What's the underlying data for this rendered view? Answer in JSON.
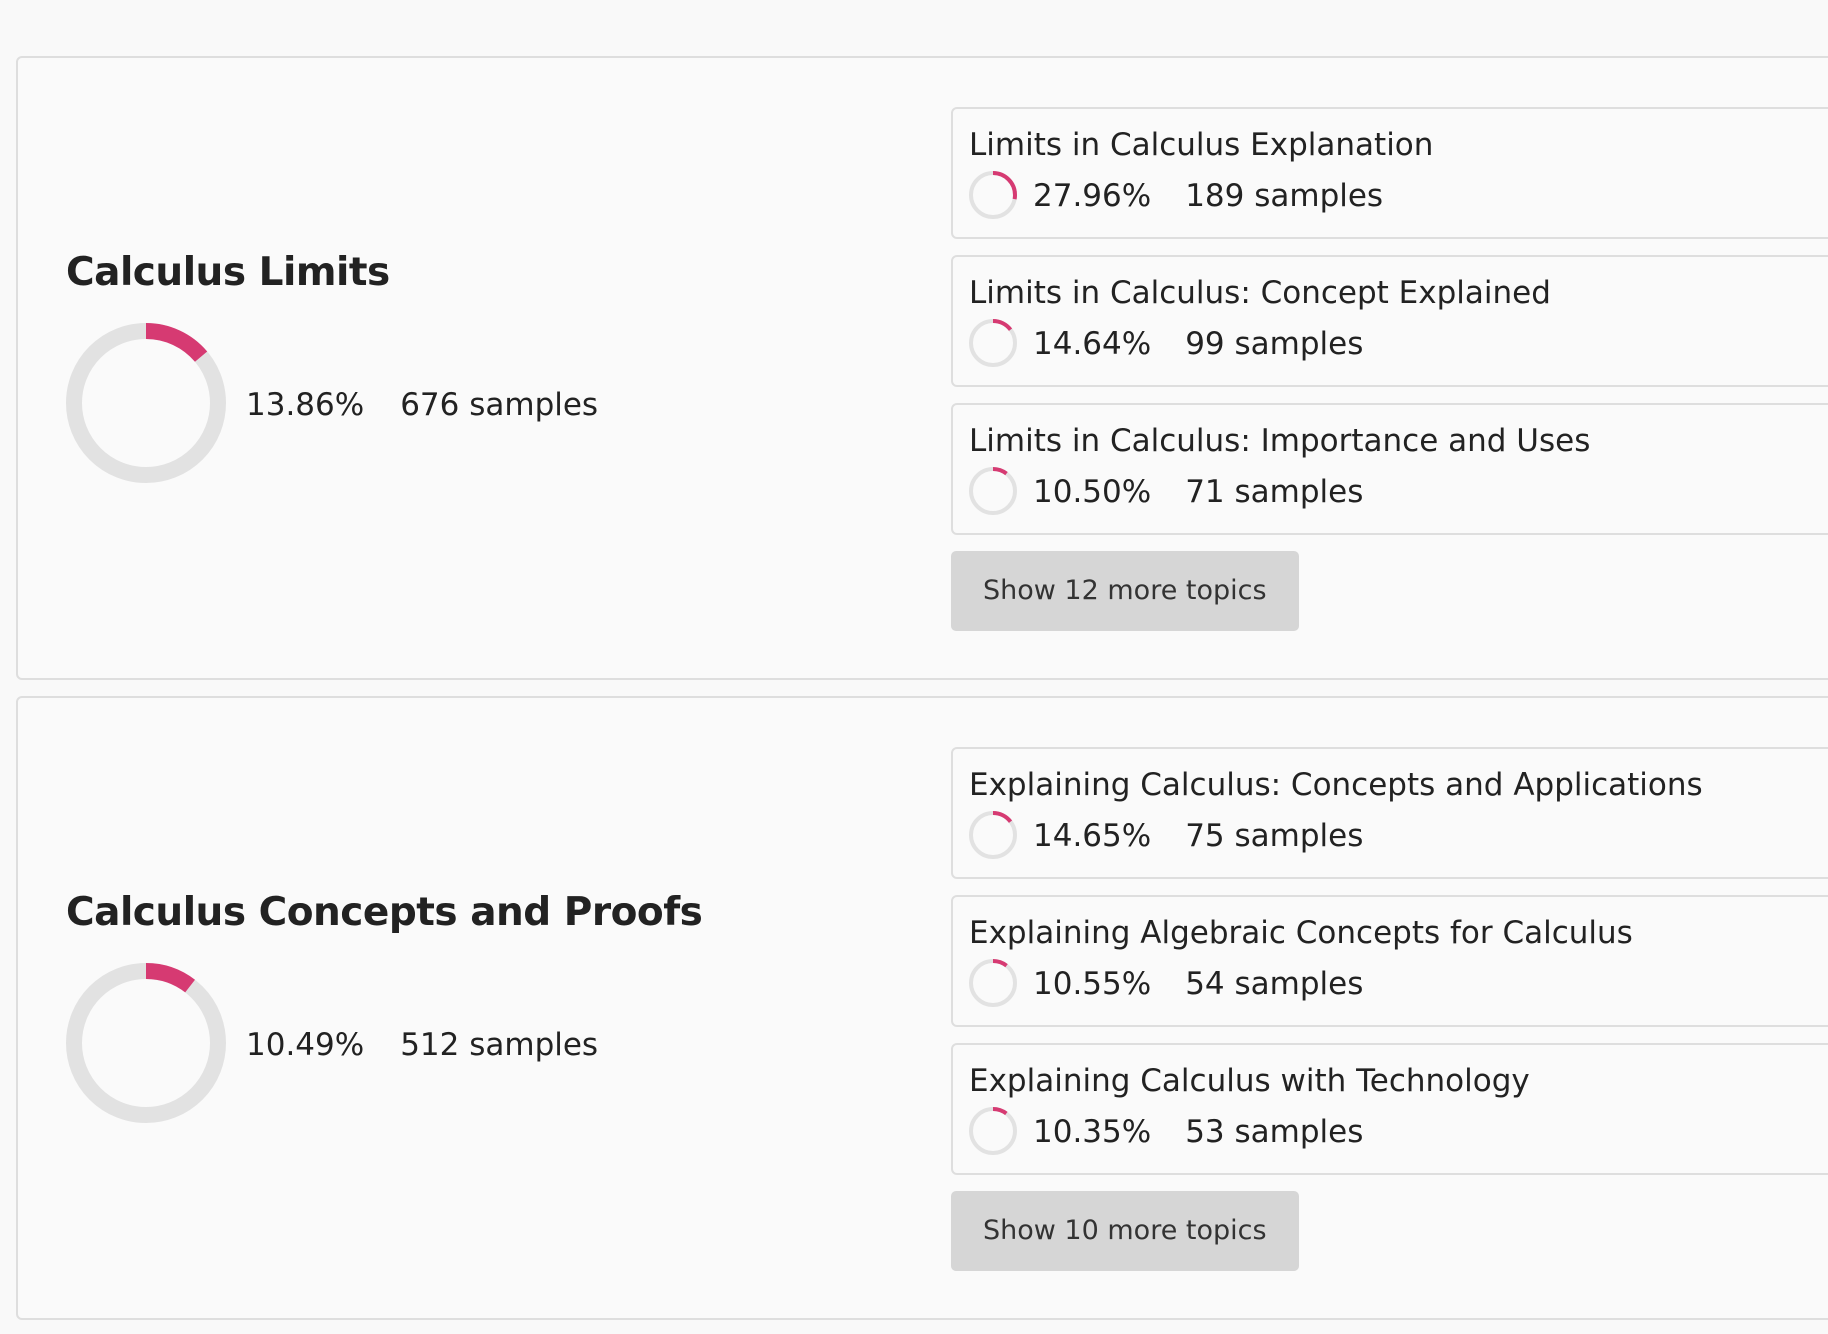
{
  "colors": {
    "accent": "#d63a72",
    "track": "#e2e2e2"
  },
  "clusters": [
    {
      "title": "Calculus Limits",
      "percent": "13.86%",
      "percent_value": 13.86,
      "samples": "676 samples",
      "topics": [
        {
          "title": "Limits in Calculus Explanation",
          "percent": "27.96%",
          "percent_value": 27.96,
          "samples": "189 samples"
        },
        {
          "title": "Limits in Calculus: Concept Explained",
          "percent": "14.64%",
          "percent_value": 14.64,
          "samples": "99 samples"
        },
        {
          "title": "Limits in Calculus: Importance and Uses",
          "percent": "10.50%",
          "percent_value": 10.5,
          "samples": "71 samples"
        }
      ],
      "more_label": "Show 12 more topics"
    },
    {
      "title": "Calculus Concepts and Proofs",
      "percent": "10.49%",
      "percent_value": 10.49,
      "samples": "512 samples",
      "topics": [
        {
          "title": "Explaining Calculus: Concepts and Applications",
          "percent": "14.65%",
          "percent_value": 14.65,
          "samples": "75 samples"
        },
        {
          "title": "Explaining Algebraic Concepts for Calculus",
          "percent": "10.55%",
          "percent_value": 10.55,
          "samples": "54 samples"
        },
        {
          "title": "Explaining Calculus with Technology",
          "percent": "10.35%",
          "percent_value": 10.35,
          "samples": "53 samples"
        }
      ],
      "more_label": "Show 10 more topics"
    }
  ]
}
